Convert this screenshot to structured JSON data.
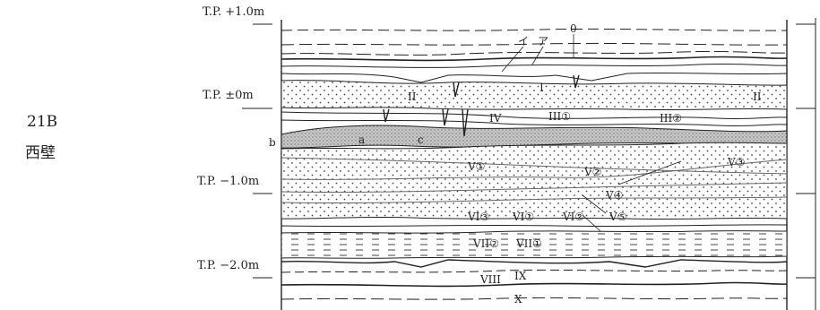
{
  "side": {
    "trench": "21B",
    "wall": "西壁"
  },
  "elevations": [
    "T.P. +1.0m",
    "T.P. ±0m",
    "T.P. −1.0m",
    "T.P. −2.0m"
  ],
  "layer_labels": {
    "i": "イ",
    "a": "ア",
    "zero": "0",
    "l1a": "I",
    "l2a": "II",
    "l2b": "II",
    "l3_1": "III①",
    "l3_2": "III②",
    "l4": "IV",
    "b": "b",
    "la": "a",
    "lc": "c",
    "v1": "V①",
    "v2": "V②",
    "v3": "V③",
    "v4": "V④",
    "v5": "V⑤",
    "vi3": "VI③",
    "vi1": "VI①",
    "vi2": "VI②",
    "vii2": "VII②",
    "vii1": "VII①",
    "viii": "VIII",
    "ix": "IX",
    "x": "X"
  },
  "colors": {
    "ink": "#222222",
    "sand_fill": "#f7f7f7",
    "gravel_fill": "#bdbdbd"
  }
}
